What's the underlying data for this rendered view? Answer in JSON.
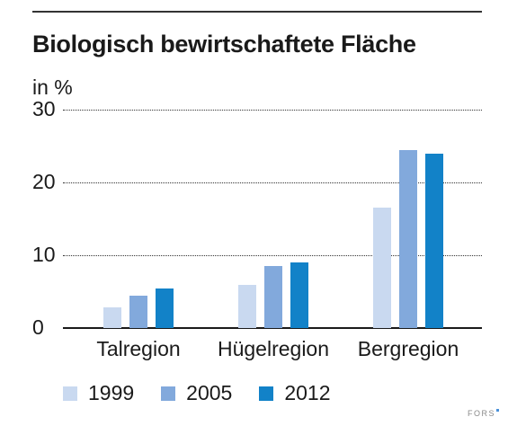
{
  "chart_data": {
    "type": "bar",
    "title": "Biologisch bewirtschaftete Fläche",
    "ylabel": "in %",
    "xlabel": "",
    "ylim": [
      0,
      30
    ],
    "yticks": [
      "0",
      "10",
      "20",
      "30"
    ],
    "grid": true,
    "legend_placement": "bottom",
    "categories": [
      "Talregion",
      "Hügelregion",
      "Bergregion"
    ],
    "series": [
      {
        "name": "1999",
        "color": "#c9d9f0",
        "values": [
          2.8,
          5.9,
          16.5
        ]
      },
      {
        "name": "2005",
        "color": "#82a9dc",
        "values": [
          4.4,
          8.5,
          24.5
        ]
      },
      {
        "name": "2012",
        "color": "#1282c8",
        "values": [
          5.4,
          9.0,
          24.0
        ]
      }
    ]
  },
  "branding": {
    "text": "FORS",
    "accent": "#4a90d9"
  }
}
